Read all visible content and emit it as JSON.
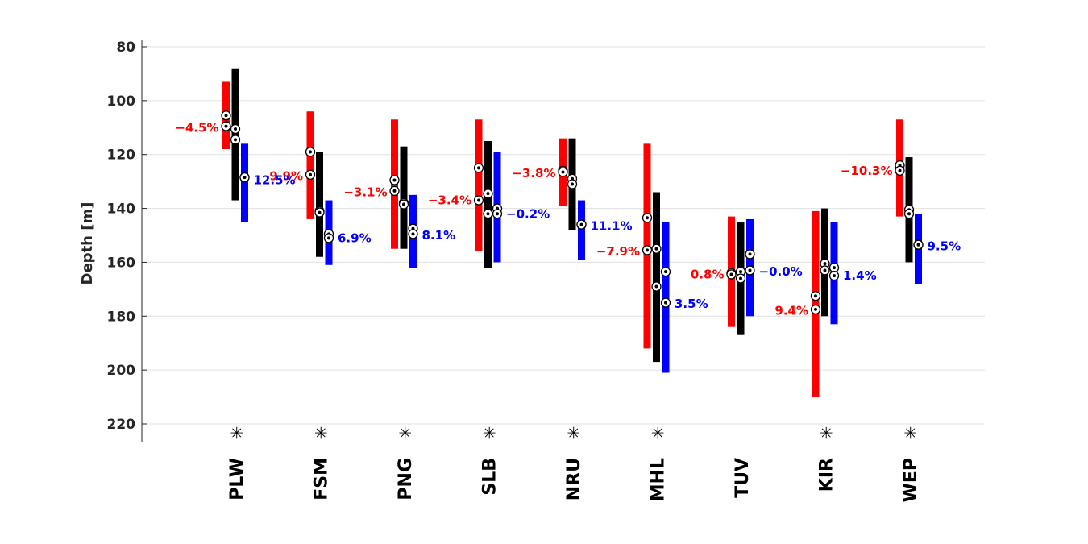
{
  "chart_data": {
    "type": "range-bar",
    "ylabel": "Depth [m]",
    "ylim": [
      220,
      80
    ],
    "y_reversed": true,
    "yticks": [
      80,
      100,
      120,
      140,
      160,
      180,
      200,
      220
    ],
    "grid": true,
    "categories": [
      "PLW",
      "FSM",
      "PNG",
      "SLB",
      "NRU",
      "MHL",
      "TUV",
      "KIR",
      "WEP"
    ],
    "category_marks": [
      "✳",
      "✳",
      "✳",
      "✳",
      "✳",
      "✳",
      "",
      "✳",
      "✳"
    ],
    "colors": {
      "red": "#ff0000",
      "black": "#000000",
      "blue": "#0000ff",
      "grid": "#e0e0e0",
      "axis": "#262626"
    },
    "series": [
      {
        "color": "#ff0000",
        "ranges": [
          [
            93,
            118
          ],
          [
            104,
            144
          ],
          [
            107,
            155
          ],
          [
            107,
            156
          ],
          [
            114,
            139
          ],
          [
            116,
            192
          ],
          [
            143,
            184
          ],
          [
            141,
            210
          ],
          [
            107,
            143
          ]
        ],
        "markers": [
          [
            105.5,
            109.5
          ],
          [
            119,
            127.5
          ],
          [
            129.5,
            133.5
          ],
          [
            125,
            137
          ],
          [
            126,
            126.5
          ],
          [
            143.5,
            155.5
          ],
          [
            164,
            164.5
          ],
          [
            172.5,
            177.5
          ],
          [
            124,
            126
          ]
        ]
      },
      {
        "color": "#000000",
        "ranges": [
          [
            88,
            137
          ],
          [
            119,
            158
          ],
          [
            117,
            155
          ],
          [
            115,
            162
          ],
          [
            114,
            148
          ],
          [
            134,
            197
          ],
          [
            145,
            187
          ],
          [
            140,
            180
          ],
          [
            121,
            160
          ]
        ],
        "markers": [
          [
            110.5,
            114.5
          ],
          [
            141,
            141.5
          ],
          [
            138,
            138.5
          ],
          [
            134.5,
            142
          ],
          [
            129,
            131
          ],
          [
            155,
            169
          ],
          [
            163.5,
            166
          ],
          [
            160.5,
            163
          ],
          [
            140.5,
            142
          ]
        ]
      },
      {
        "color": "#0000ff",
        "ranges": [
          [
            116,
            145
          ],
          [
            137,
            161
          ],
          [
            135,
            162
          ],
          [
            119,
            160
          ],
          [
            137,
            159
          ],
          [
            145,
            201
          ],
          [
            144,
            180
          ],
          [
            145,
            183
          ],
          [
            142,
            168
          ]
        ],
        "markers": [
          [
            128.5,
            128.5
          ],
          [
            149.5,
            151
          ],
          [
            147.5,
            149.5
          ],
          [
            140,
            142
          ],
          [
            146,
            146
          ],
          [
            163.5,
            175
          ],
          [
            157,
            163
          ],
          [
            162,
            165
          ],
          [
            153.5,
            153.5
          ]
        ]
      }
    ],
    "annotations": {
      "red": [
        {
          "text": "−4.5%",
          "y": 110
        },
        {
          "text": "9.9%",
          "y": 128
        },
        {
          "text": "−3.1%",
          "y": 134
        },
        {
          "text": "−3.4%",
          "y": 137
        },
        {
          "text": "−3.8%",
          "y": 127
        },
        {
          "text": "−7.9%",
          "y": 156
        },
        {
          "text": "0.8%",
          "y": 164.5
        },
        {
          "text": "9.4%",
          "y": 178
        },
        {
          "text": "−10.3%",
          "y": 126
        }
      ],
      "blue": [
        {
          "text": "12.5%",
          "y": 129.5
        },
        {
          "text": "6.9%",
          "y": 151
        },
        {
          "text": "8.1%",
          "y": 150
        },
        {
          "text": "−0.2%",
          "y": 142
        },
        {
          "text": "11.1%",
          "y": 146.5
        },
        {
          "text": "3.5%",
          "y": 175.5
        },
        {
          "text": "−0.0%",
          "y": 163.5
        },
        {
          "text": "1.4%",
          "y": 165
        },
        {
          "text": "9.5%",
          "y": 154
        }
      ]
    }
  }
}
